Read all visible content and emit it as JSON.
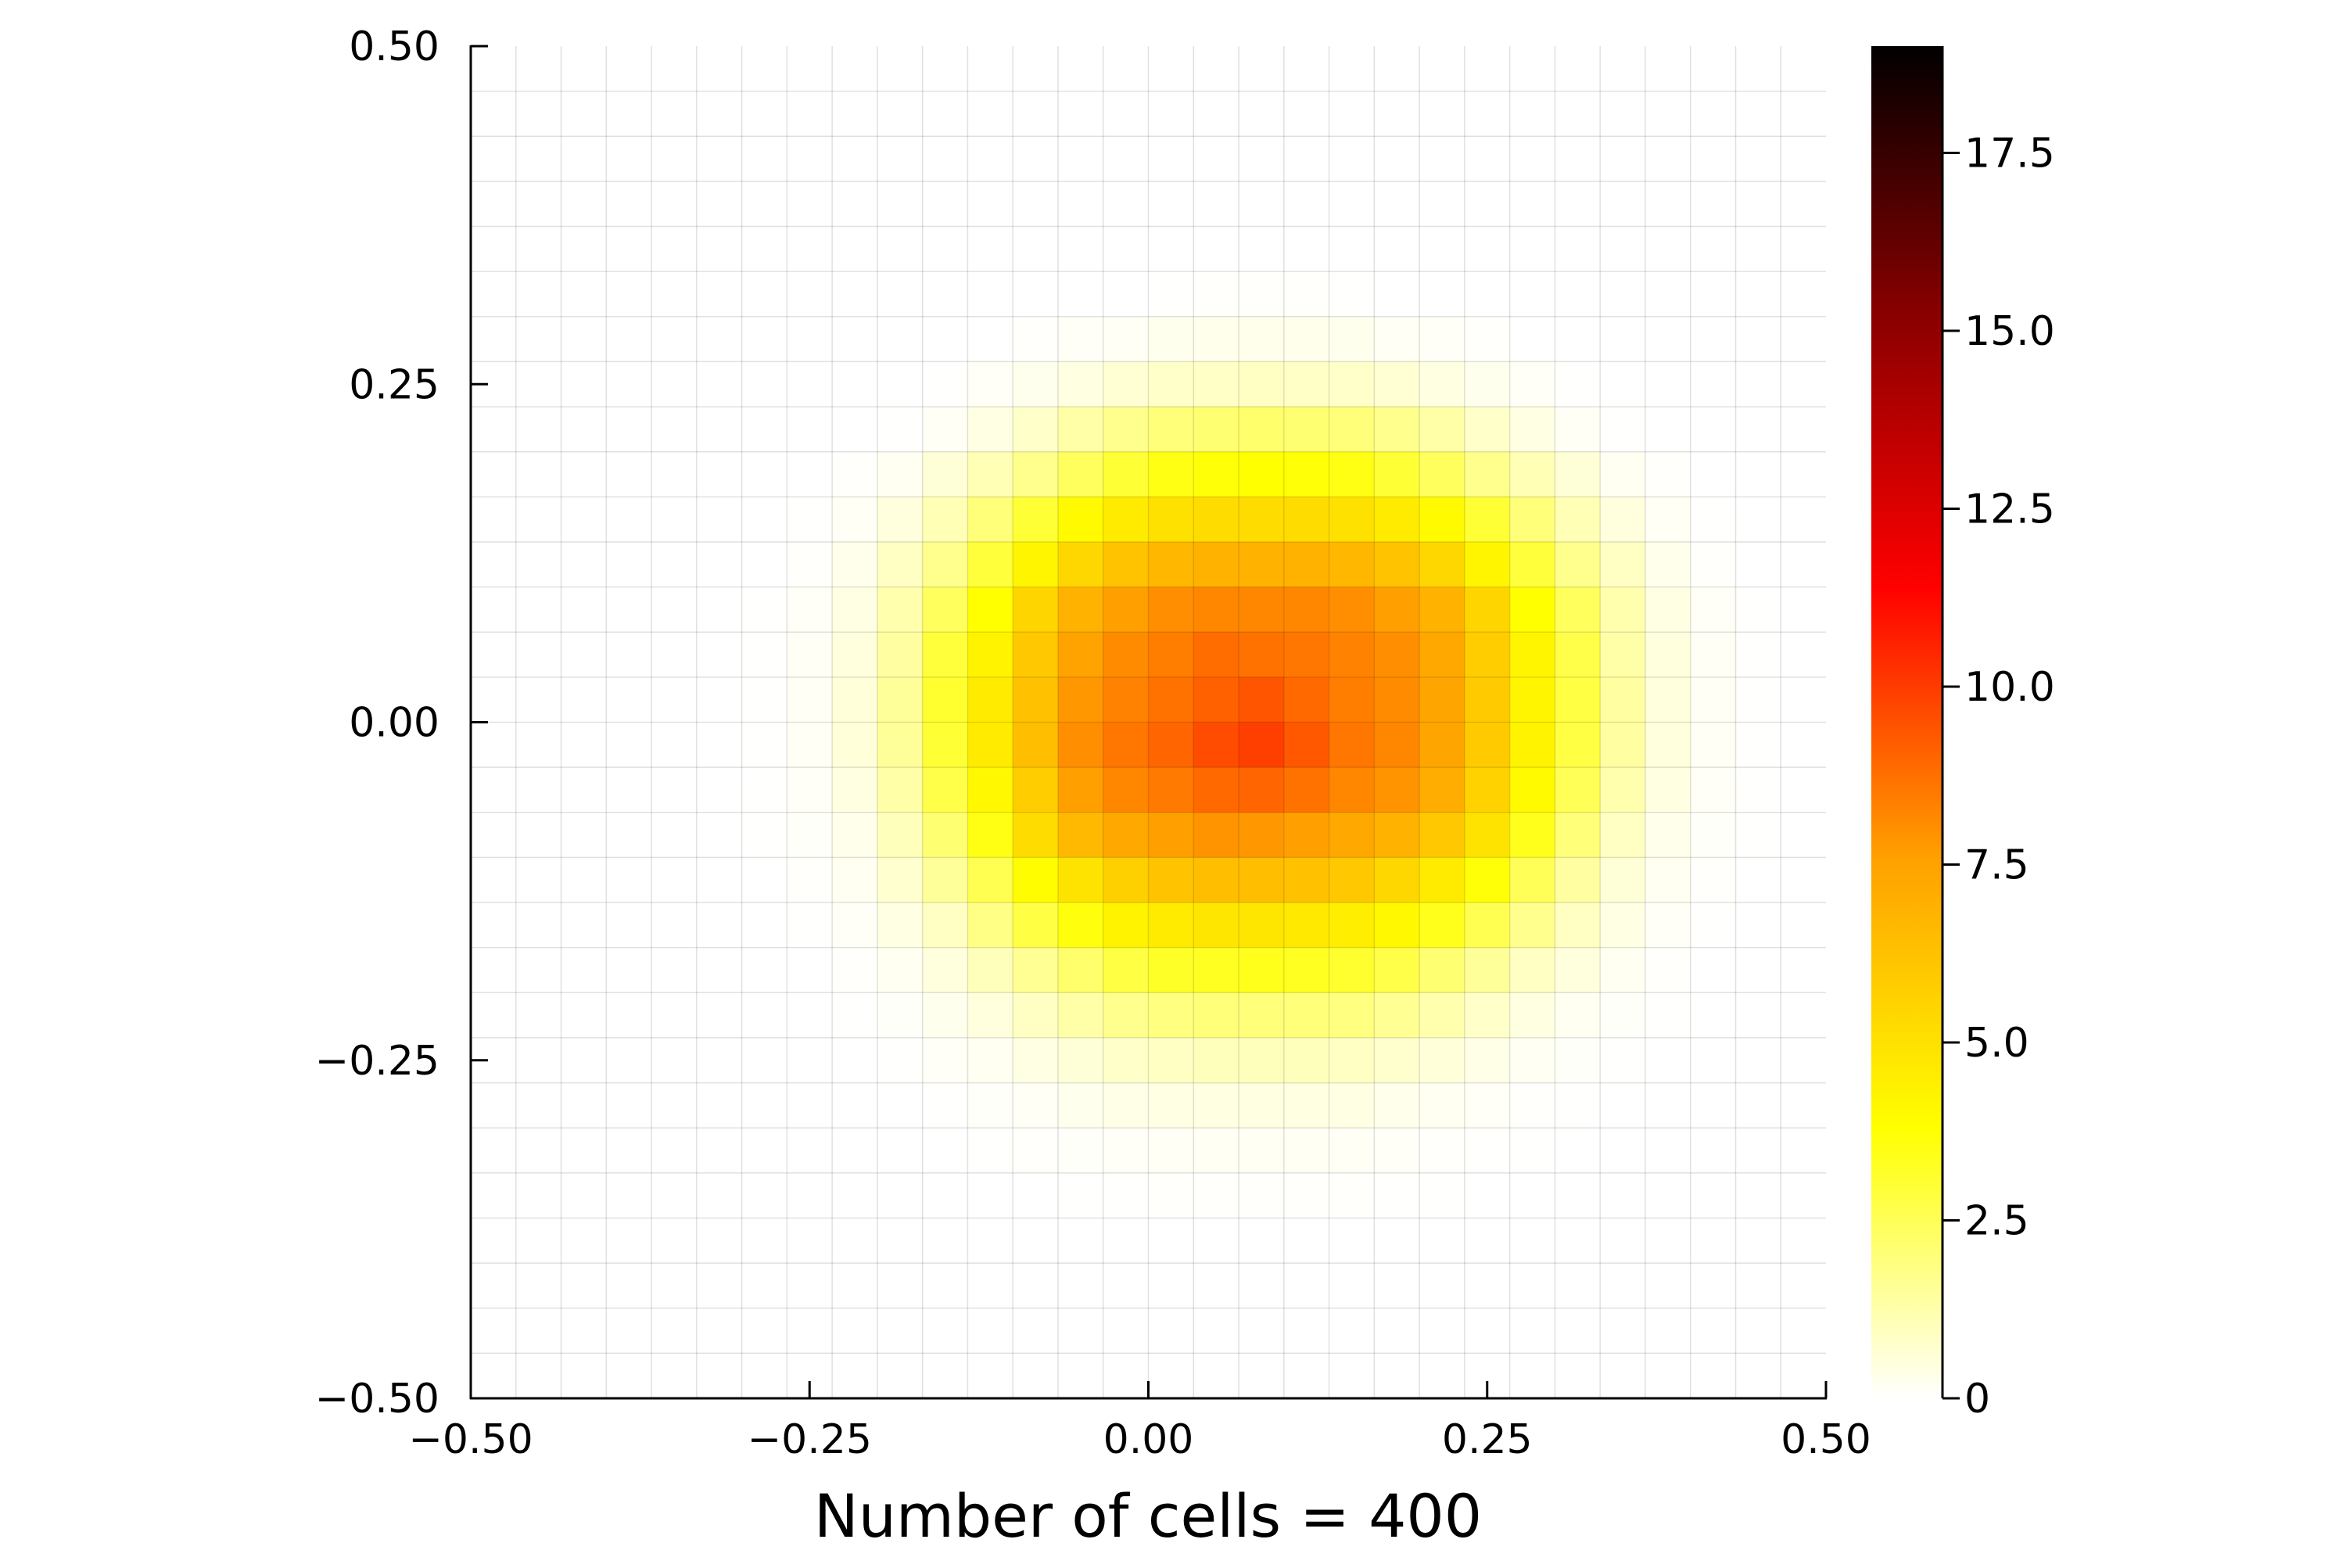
{
  "chart_data": {
    "type": "heatmap",
    "title": "",
    "xlabel": "Number of cells = 400",
    "ylabel": "",
    "xlim": [
      -0.5,
      0.5
    ],
    "ylim": [
      -0.5,
      0.5
    ],
    "grid": true,
    "grid_size": [
      30,
      30
    ],
    "x_ticks": [
      {
        "value": -0.5,
        "label": "−0.50"
      },
      {
        "value": -0.25,
        "label": "−0.25"
      },
      {
        "value": 0.0,
        "label": "0.00"
      },
      {
        "value": 0.25,
        "label": "0.25"
      },
      {
        "value": 0.5,
        "label": "0.50"
      }
    ],
    "y_ticks": [
      {
        "value": -0.5,
        "label": "−0.50"
      },
      {
        "value": -0.25,
        "label": "−0.25"
      },
      {
        "value": 0.0,
        "label": "0.00"
      },
      {
        "value": 0.25,
        "label": "0.25"
      },
      {
        "value": 0.5,
        "label": "0.50"
      }
    ],
    "colorbar": {
      "min": 0,
      "max": 19,
      "colormap": "hot (white-yellow-orange-red-black)",
      "colors": [
        "#ffffff",
        "#ffff00",
        "#ffa000",
        "#ff0000",
        "#8a0000",
        "#000000"
      ],
      "ticks": [
        {
          "value": 0,
          "label": "0"
        },
        {
          "value": 2.5,
          "label": "2.5"
        },
        {
          "value": 5.0,
          "label": "5.0"
        },
        {
          "value": 7.5,
          "label": "7.5"
        },
        {
          "value": 10.0,
          "label": "10.0"
        },
        {
          "value": 12.5,
          "label": "12.5"
        },
        {
          "value": 15.0,
          "label": "15.0"
        },
        {
          "value": 17.5,
          "label": "17.5"
        }
      ]
    },
    "z": [
      [
        0,
        0,
        0,
        0,
        0,
        0,
        0,
        0,
        0,
        0,
        0,
        0,
        0,
        0,
        0,
        0,
        0,
        0,
        0,
        0,
        0,
        0,
        0,
        0,
        0,
        0,
        0,
        0,
        0,
        0
      ],
      [
        0,
        0,
        0,
        0,
        0,
        0,
        0,
        0,
        0,
        0,
        0,
        0,
        0,
        0,
        0,
        0,
        0,
        0,
        0,
        0,
        0,
        0,
        0,
        0,
        0,
        0,
        0,
        0,
        0,
        0
      ],
      [
        0,
        0,
        0,
        0,
        0,
        0,
        0,
        0,
        0,
        0,
        0,
        0,
        0,
        0,
        0,
        0,
        0,
        0,
        0,
        0,
        0,
        0,
        0,
        0,
        0,
        0,
        0,
        0,
        0,
        0
      ],
      [
        0,
        0,
        0,
        0,
        0,
        0,
        0,
        0,
        0,
        0,
        0,
        0,
        0,
        0,
        0,
        0,
        0,
        0,
        0,
        0,
        0,
        0,
        0,
        0,
        0,
        0,
        0,
        0,
        0,
        0
      ],
      [
        0,
        0,
        0,
        0,
        0,
        0,
        0,
        0,
        0,
        0,
        0,
        0,
        0,
        0,
        0,
        0,
        0,
        0,
        0,
        0,
        0,
        0,
        0,
        0,
        0,
        0,
        0,
        0,
        0,
        0
      ],
      [
        0,
        0,
        0,
        0,
        0,
        0,
        0,
        0,
        0,
        0,
        0,
        0,
        0,
        0,
        0,
        0.03,
        0.04,
        0.06,
        0.04,
        0.03,
        0,
        0,
        0,
        0,
        0,
        0,
        0,
        0,
        0,
        0
      ],
      [
        0,
        0,
        0,
        0,
        0,
        0,
        0,
        0,
        0,
        0,
        0,
        0,
        0.05,
        0.1,
        0.15,
        0.25,
        0.28,
        0.3,
        0.28,
        0.25,
        0.15,
        0.1,
        0.05,
        0,
        0,
        0,
        0,
        0,
        0,
        0
      ],
      [
        0,
        0,
        0,
        0,
        0,
        0,
        0,
        0,
        0,
        0,
        0.03,
        0.1,
        0.25,
        0.45,
        0.65,
        0.8,
        0.85,
        0.9,
        0.85,
        0.8,
        0.65,
        0.45,
        0.25,
        0.1,
        0.03,
        0,
        0,
        0,
        0,
        0
      ],
      [
        0,
        0,
        0,
        0,
        0,
        0,
        0,
        0,
        0,
        0.03,
        0.15,
        0.4,
        0.8,
        1.3,
        1.7,
        2.0,
        2.1,
        2.2,
        2.1,
        2.0,
        1.7,
        1.3,
        0.8,
        0.4,
        0.15,
        0.03,
        0,
        0,
        0,
        0
      ],
      [
        0,
        0,
        0,
        0,
        0,
        0,
        0,
        0,
        0.05,
        0.2,
        0.6,
        1.1,
        1.7,
        2.4,
        3.0,
        3.5,
        3.7,
        3.8,
        3.7,
        3.5,
        3.0,
        2.4,
        1.7,
        1.1,
        0.6,
        0.2,
        0.05,
        0,
        0,
        0
      ],
      [
        0,
        0,
        0,
        0,
        0,
        0,
        0,
        0.03,
        0.15,
        0.5,
        1.1,
        2.0,
        3.0,
        4.0,
        4.6,
        5.0,
        5.2,
        5.2,
        5.2,
        5.0,
        4.6,
        4.0,
        3.0,
        2.0,
        1.1,
        0.5,
        0.15,
        0.03,
        0,
        0
      ],
      [
        0,
        0,
        0,
        0,
        0,
        0,
        0,
        0.05,
        0.3,
        0.9,
        1.7,
        2.9,
        4.2,
        5.4,
        6.2,
        6.7,
        6.9,
        6.9,
        6.9,
        6.7,
        6.2,
        5.4,
        4.2,
        2.9,
        1.7,
        0.9,
        0.3,
        0.05,
        0,
        0
      ],
      [
        0,
        0,
        0,
        0,
        0,
        0,
        0.02,
        0.1,
        0.4,
        1.2,
        2.4,
        3.8,
        5.5,
        6.9,
        7.6,
        8.0,
        8.2,
        8.2,
        8.2,
        8.0,
        7.6,
        6.9,
        5.5,
        3.8,
        2.4,
        1.2,
        0.4,
        0.1,
        0.02,
        0
      ],
      [
        0,
        0,
        0,
        0,
        0,
        0,
        0.03,
        0.15,
        0.5,
        1.4,
        2.9,
        4.3,
        6.0,
        7.5,
        8.1,
        8.4,
        8.8,
        8.7,
        8.6,
        8.3,
        8.0,
        7.3,
        5.8,
        4.2,
        2.7,
        1.3,
        0.5,
        0.15,
        0.03,
        0
      ],
      [
        0,
        0,
        0,
        0,
        0,
        0,
        0.03,
        0.15,
        0.55,
        1.5,
        3.1,
        4.6,
        6.3,
        7.8,
        8.3,
        8.7,
        9.1,
        9.4,
        8.9,
        8.4,
        8.1,
        7.4,
        5.9,
        4.2,
        2.8,
        1.4,
        0.5,
        0.15,
        0.03,
        0
      ],
      [
        0,
        0,
        0,
        0,
        0,
        0,
        0.03,
        0.15,
        0.55,
        1.5,
        3.0,
        4.6,
        6.4,
        8.0,
        8.6,
        9.0,
        9.6,
        9.9,
        9.3,
        8.6,
        8.2,
        7.4,
        5.9,
        4.3,
        2.8,
        1.4,
        0.5,
        0.15,
        0.03,
        0
      ],
      [
        0,
        0,
        0,
        0,
        0,
        0,
        0.02,
        0.12,
        0.45,
        1.3,
        2.7,
        4.1,
        5.8,
        7.6,
        8.2,
        8.5,
        8.9,
        9.0,
        8.7,
        8.2,
        7.9,
        7.1,
        5.6,
        4.0,
        2.5,
        1.2,
        0.45,
        0.12,
        0.02,
        0
      ],
      [
        0,
        0,
        0,
        0,
        0,
        0,
        0.02,
        0.08,
        0.3,
        1.0,
        2.1,
        3.5,
        5.2,
        6.6,
        7.3,
        7.6,
        7.9,
        7.8,
        7.6,
        7.3,
        6.9,
        6.0,
        4.9,
        3.4,
        2.0,
        0.9,
        0.3,
        0.08,
        0.02,
        0
      ],
      [
        0,
        0,
        0,
        0,
        0,
        0,
        0,
        0.04,
        0.2,
        0.7,
        1.5,
        2.6,
        3.9,
        4.9,
        5.7,
        6.2,
        6.4,
        6.4,
        6.3,
        6.0,
        5.4,
        4.6,
        3.7,
        2.5,
        1.4,
        0.6,
        0.2,
        0.04,
        0,
        0
      ],
      [
        0,
        0,
        0,
        0,
        0,
        0,
        0,
        0.02,
        0.1,
        0.4,
        0.9,
        1.8,
        2.8,
        3.6,
        4.3,
        4.6,
        4.8,
        4.8,
        4.7,
        4.5,
        4.1,
        3.4,
        2.6,
        1.7,
        0.9,
        0.4,
        0.1,
        0.02,
        0,
        0
      ],
      [
        0,
        0,
        0,
        0,
        0,
        0,
        0,
        0,
        0.05,
        0.2,
        0.5,
        1.0,
        1.6,
        2.2,
        2.8,
        3.2,
        3.3,
        3.4,
        3.3,
        3.1,
        2.7,
        2.1,
        1.5,
        0.9,
        0.5,
        0.2,
        0.05,
        0,
        0,
        0
      ],
      [
        0,
        0,
        0,
        0,
        0,
        0,
        0,
        0,
        0.02,
        0.08,
        0.25,
        0.5,
        0.9,
        1.3,
        1.7,
        1.9,
        2.0,
        2.0,
        2.0,
        1.9,
        1.6,
        1.2,
        0.8,
        0.45,
        0.2,
        0.07,
        0.02,
        0,
        0,
        0
      ],
      [
        0,
        0,
        0,
        0,
        0,
        0,
        0,
        0,
        0,
        0.03,
        0.1,
        0.2,
        0.4,
        0.6,
        0.8,
        0.9,
        1.0,
        1.0,
        1.0,
        0.9,
        0.75,
        0.55,
        0.35,
        0.18,
        0.08,
        0.02,
        0,
        0,
        0,
        0
      ],
      [
        0,
        0,
        0,
        0,
        0,
        0,
        0,
        0,
        0,
        0,
        0.03,
        0.07,
        0.15,
        0.25,
        0.35,
        0.4,
        0.45,
        0.45,
        0.45,
        0.4,
        0.3,
        0.2,
        0.12,
        0.05,
        0.02,
        0,
        0,
        0,
        0,
        0
      ],
      [
        0,
        0,
        0,
        0,
        0,
        0,
        0,
        0,
        0,
        0,
        0,
        0.02,
        0.04,
        0.08,
        0.12,
        0.15,
        0.16,
        0.16,
        0.16,
        0.14,
        0.1,
        0.06,
        0.03,
        0.01,
        0,
        0,
        0,
        0,
        0,
        0
      ],
      [
        0,
        0,
        0,
        0,
        0,
        0,
        0,
        0,
        0,
        0,
        0,
        0,
        0,
        0.02,
        0.03,
        0.04,
        0.05,
        0.05,
        0.05,
        0.04,
        0.02,
        0.01,
        0,
        0,
        0,
        0,
        0,
        0,
        0,
        0
      ],
      [
        0,
        0,
        0,
        0,
        0,
        0,
        0,
        0,
        0,
        0,
        0,
        0,
        0,
        0,
        0,
        0,
        0,
        0,
        0,
        0,
        0,
        0,
        0,
        0,
        0,
        0,
        0,
        0,
        0,
        0
      ],
      [
        0,
        0,
        0,
        0,
        0,
        0,
        0,
        0,
        0,
        0,
        0,
        0,
        0,
        0,
        0,
        0,
        0,
        0,
        0,
        0,
        0,
        0,
        0,
        0,
        0,
        0,
        0,
        0,
        0,
        0
      ],
      [
        0,
        0,
        0,
        0,
        0,
        0,
        0,
        0,
        0,
        0,
        0,
        0,
        0,
        0,
        0,
        0,
        0,
        0,
        0,
        0,
        0,
        0,
        0,
        0,
        0,
        0,
        0,
        0,
        0,
        0
      ],
      [
        0,
        0,
        0,
        0,
        0,
        0,
        0,
        0,
        0,
        0,
        0,
        0,
        0,
        0,
        0,
        0,
        0,
        0,
        0,
        0,
        0,
        0,
        0,
        0,
        0,
        0,
        0,
        0,
        0,
        0
      ]
    ]
  }
}
